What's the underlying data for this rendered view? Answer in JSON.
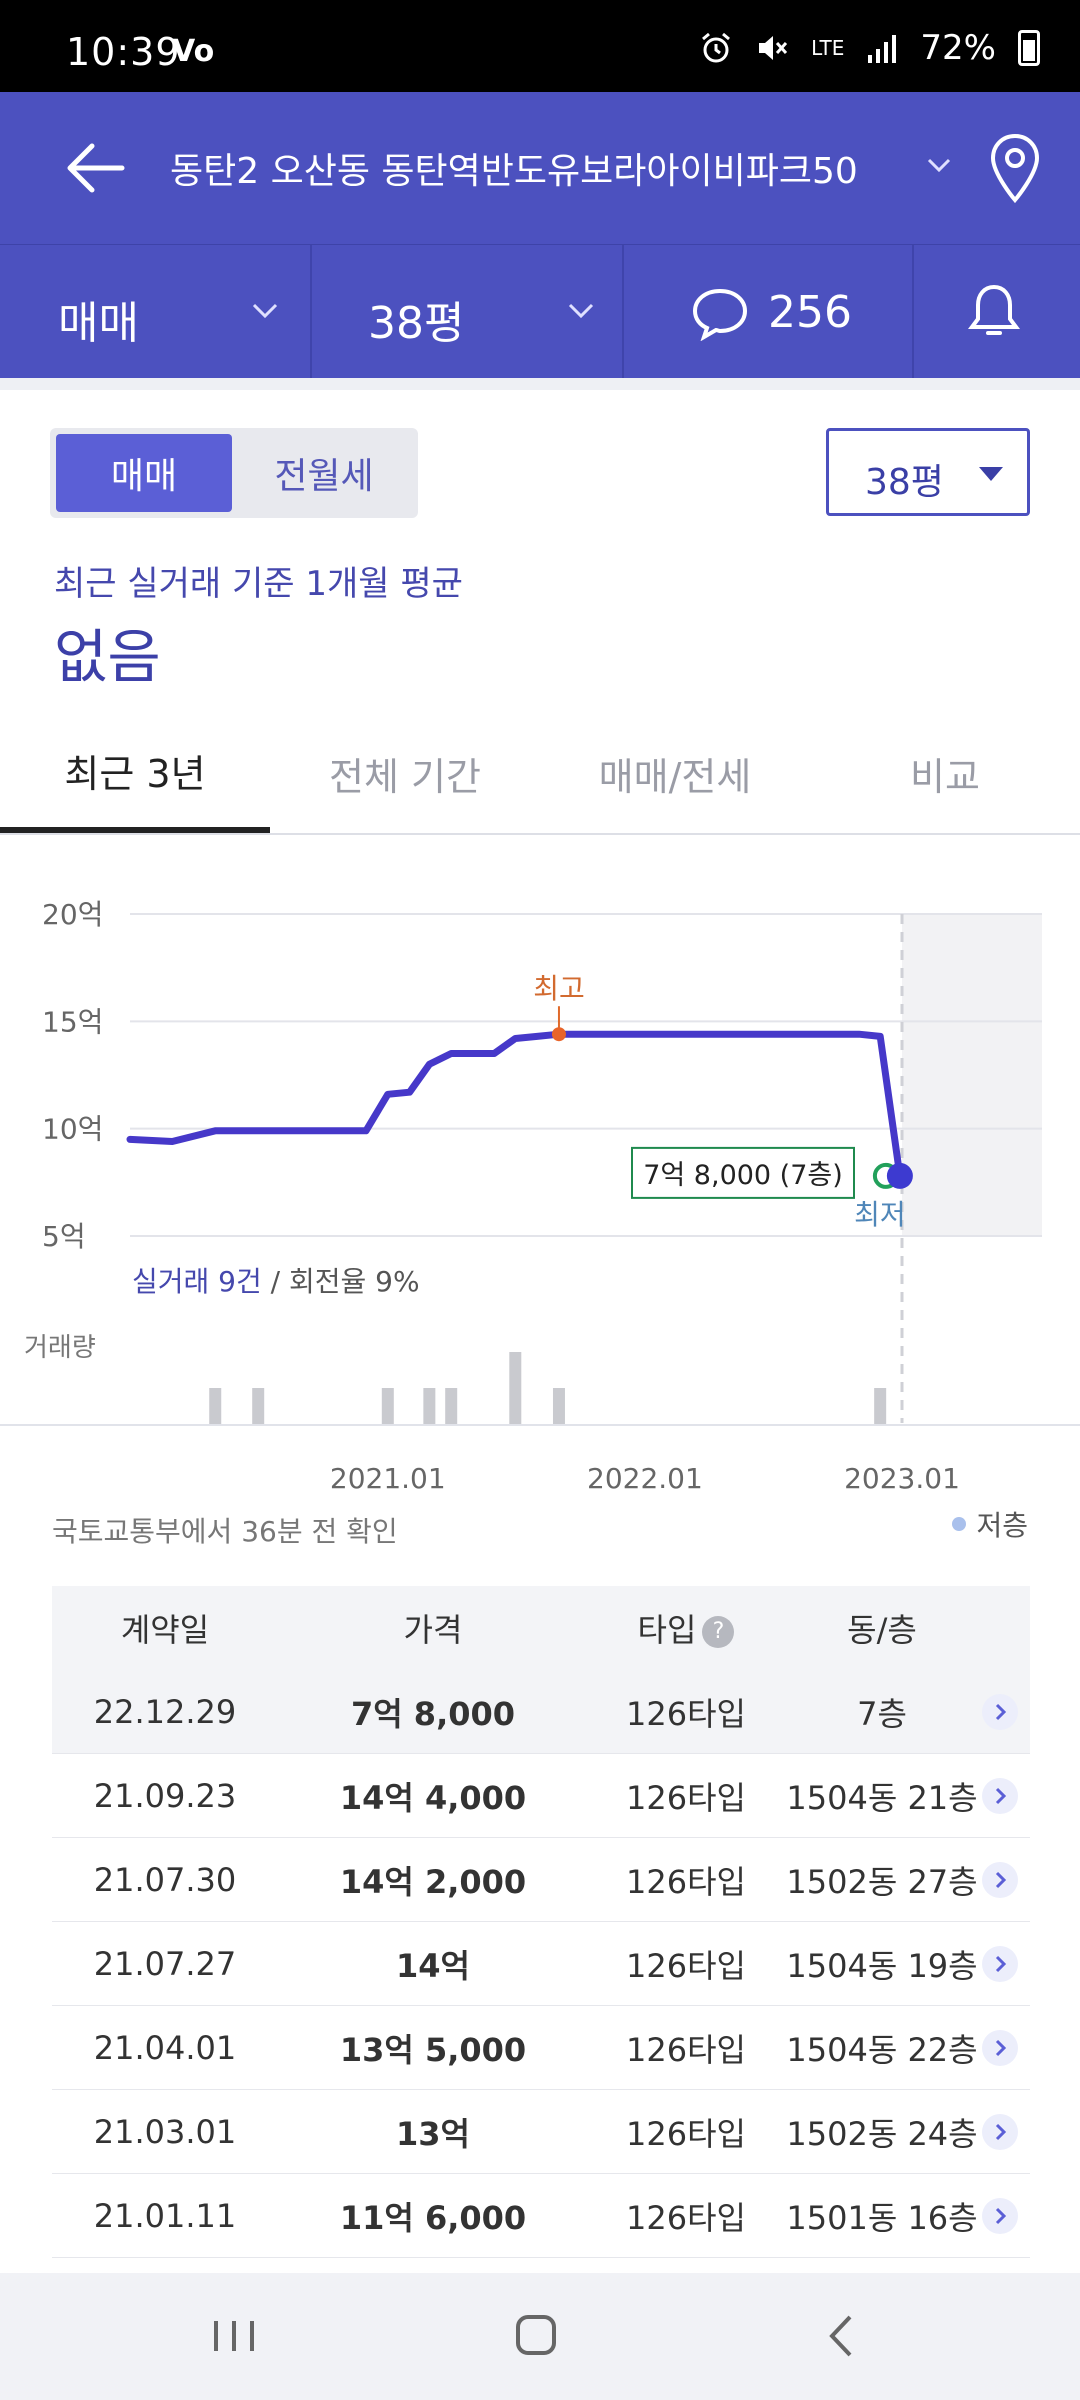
{
  "status_bar": {
    "time": "10:39",
    "left_icon": "Vo",
    "network": "LTE",
    "battery": "72%"
  },
  "header": {
    "title": "동탄2 오산동 동탄역반도유보라아이비파크50"
  },
  "filter_bar": {
    "deal_type": "매매",
    "size": "38평",
    "comment_count": "256"
  },
  "controls": {
    "segment": [
      "매매",
      "전월세"
    ],
    "size_select": "38평"
  },
  "average": {
    "label": "최근 실거래 기준 1개월 평균",
    "value": "없음"
  },
  "tabs": [
    "최근 3년",
    "전체 기간",
    "매매/전세",
    "비교"
  ],
  "chart_data": {
    "type": "line",
    "y_ticks": [
      "20억",
      "15억",
      "10억",
      "5억"
    ],
    "x_ticks": [
      "2021.01",
      "2022.01",
      "2023.01"
    ],
    "ylim": [
      5,
      20
    ],
    "high_label": "최고",
    "low_label": "최저",
    "tooltip": "7억 8,000 (7층)",
    "summary_prefix": "실거래 9건",
    "summary_suffix": " / 회전율 9%",
    "volume_label": "거래량",
    "series": [
      {
        "points": [
          [
            "2020.01",
            9.5
          ],
          [
            "2020.03",
            9.4
          ],
          [
            "2020.05",
            9.9
          ],
          [
            "2020.08",
            9.9
          ],
          [
            "2020.12",
            9.9
          ],
          [
            "2021.01",
            11.6
          ],
          [
            "2021.02",
            11.7
          ],
          [
            "2021.03",
            13.0
          ],
          [
            "2021.04",
            13.5
          ],
          [
            "2021.06",
            13.5
          ],
          [
            "2021.07",
            14.2
          ],
          [
            "2021.08",
            14.3
          ],
          [
            "2021.09",
            14.4
          ],
          [
            "2022.11",
            14.4
          ],
          [
            "2022.12",
            14.3
          ],
          [
            "2022.12.29",
            7.8
          ]
        ],
        "color": "#4638c9"
      }
    ],
    "volume_bars": [
      {
        "date": "2020.05",
        "count": 1
      },
      {
        "date": "2020.07",
        "count": 1
      },
      {
        "date": "2021.01",
        "count": 1
      },
      {
        "date": "2021.03",
        "count": 1
      },
      {
        "date": "2021.04",
        "count": 1
      },
      {
        "date": "2021.07",
        "count": 2
      },
      {
        "date": "2021.09",
        "count": 1
      },
      {
        "date": "2022.12",
        "count": 1
      }
    ]
  },
  "source_note": "국토교통부에서 36분 전 확인",
  "legend": "저층",
  "table": {
    "headers": [
      "계약일",
      "가격",
      "타입",
      "동/층"
    ],
    "rows": [
      {
        "date": "22.12.29",
        "price": "7억 8,000",
        "type": "126타입",
        "dong": "7층"
      },
      {
        "date": "21.09.23",
        "price": "14억 4,000",
        "type": "126타입",
        "dong": "1504동 21층"
      },
      {
        "date": "21.07.30",
        "price": "14억 2,000",
        "type": "126타입",
        "dong": "1502동 27층"
      },
      {
        "date": "21.07.27",
        "price": "14억",
        "type": "126타입",
        "dong": "1504동 19층"
      },
      {
        "date": "21.04.01",
        "price": "13억 5,000",
        "type": "126타입",
        "dong": "1504동 22층"
      },
      {
        "date": "21.03.01",
        "price": "13억",
        "type": "126타입",
        "dong": "1502동 24층"
      },
      {
        "date": "21.01.11",
        "price": "11억 6,000",
        "type": "126타입",
        "dong": "1501동 16층"
      }
    ]
  }
}
